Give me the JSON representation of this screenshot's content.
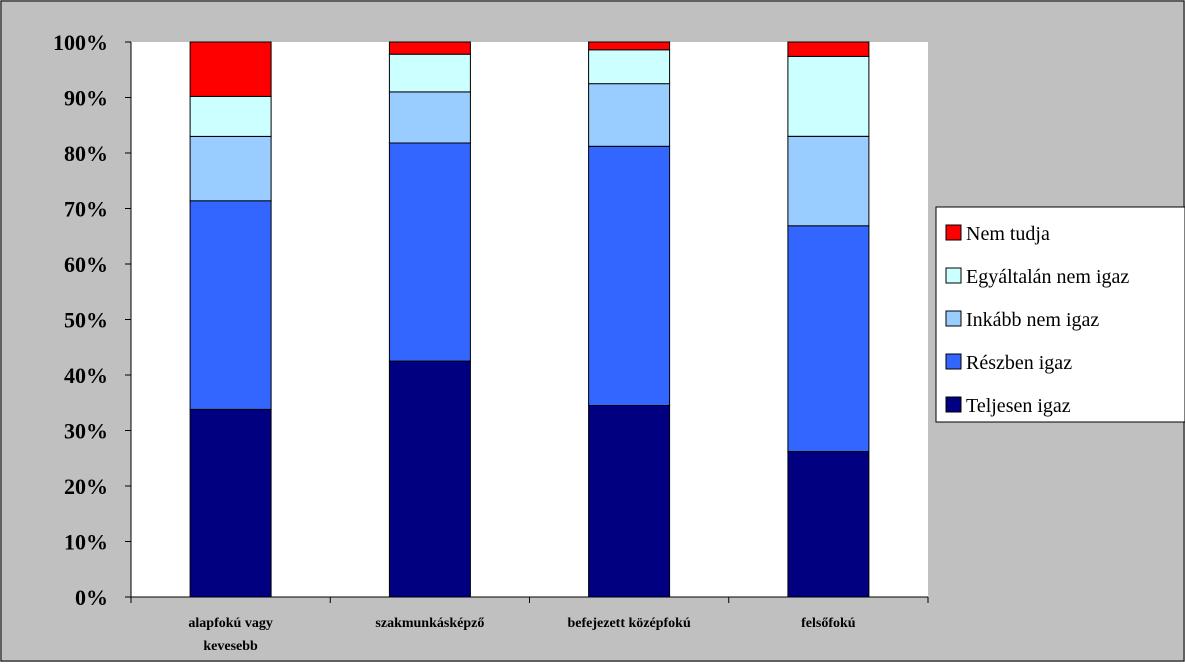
{
  "chart_data": {
    "type": "bar",
    "stacked": true,
    "percent_stacked": true,
    "categories": [
      [
        "alapfokú vagy",
        "kevesebb"
      ],
      [
        "szakmunkásképző"
      ],
      [
        "befejezett középfokú"
      ],
      [
        "felsőfokú"
      ]
    ],
    "series": [
      {
        "name": "Teljesen igaz",
        "color": "#000080",
        "values": [
          33.8,
          42.5,
          34.5,
          26.2
        ]
      },
      {
        "name": "Részben igaz",
        "color": "#3366FF",
        "values": [
          37.6,
          39.3,
          46.7,
          40.7
        ]
      },
      {
        "name": "Inkább nem igaz",
        "color": "#99CCFF",
        "values": [
          11.6,
          9.2,
          11.3,
          16.1
        ]
      },
      {
        "name": "Egyáltalán nem igaz",
        "color": "#CCFFFF",
        "values": [
          7.2,
          6.8,
          6.1,
          14.4
        ]
      },
      {
        "name": "Nem tudja",
        "color": "#FF0000",
        "values": [
          9.8,
          2.2,
          1.4,
          2.6
        ]
      }
    ],
    "legend_order": [
      "Nem tudja",
      "Egyáltalán nem igaz",
      "Inkább nem igaz",
      "Részben igaz",
      "Teljesen igaz"
    ],
    "y_ticks": [
      "0%",
      "10%",
      "20%",
      "30%",
      "40%",
      "50%",
      "60%",
      "70%",
      "80%",
      "90%",
      "100%"
    ],
    "ylim": [
      0,
      100
    ],
    "grid": false,
    "legend_position": "right",
    "plot_background": "#ffffff",
    "chart_background": "#c0c0c0"
  }
}
